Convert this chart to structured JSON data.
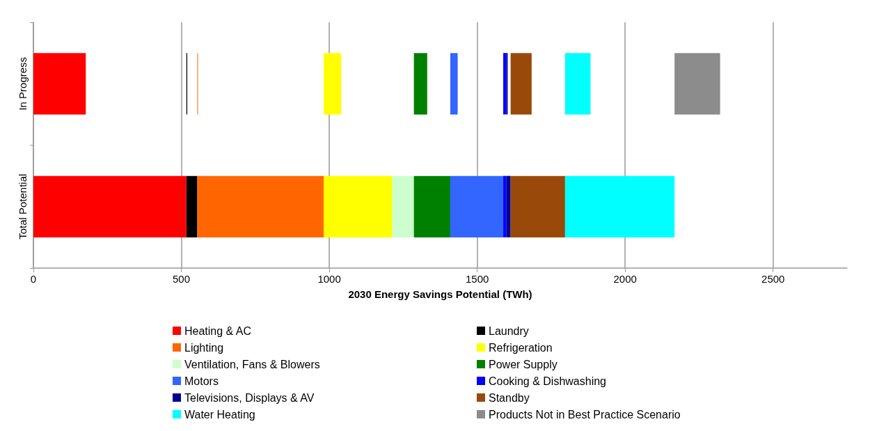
{
  "chart_data": {
    "type": "bar",
    "orientation": "horizontal",
    "xlabel": "2030 Energy Savings Potential (TWh)",
    "categories": [
      "In Progress",
      "Total Potential"
    ],
    "xlim": [
      0,
      2750
    ],
    "xticks": [
      0,
      500,
      1000,
      1500,
      2000,
      2500
    ],
    "grid": "x",
    "legend": "bottom",
    "series": [
      {
        "name": "Heating & AC",
        "color": "#ff0000",
        "values": [
          177,
          517
        ],
        "base": [
          0,
          0
        ]
      },
      {
        "name": "Laundry",
        "color": "#000000",
        "values": [
          3,
          37
        ],
        "base": [
          517,
          517
        ]
      },
      {
        "name": "Lighting",
        "color": "#ff6600",
        "values": [
          2,
          427
        ],
        "base": [
          554,
          554
        ]
      },
      {
        "name": "Refrigeration",
        "color": "#ffff00",
        "values": [
          59,
          232
        ],
        "base": [
          981,
          981
        ]
      },
      {
        "name": "Ventilation, Fans & Blowers",
        "color": "#ccffcc",
        "values": [
          null,
          73
        ],
        "base": [
          null,
          1213
        ]
      },
      {
        "name": "Power Supply",
        "color": "#008000",
        "values": [
          45,
          123
        ],
        "base": [
          1286,
          1286
        ]
      },
      {
        "name": "Motors",
        "color": "#3366ff",
        "values": [
          25,
          179
        ],
        "base": [
          1409,
          1409
        ]
      },
      {
        "name": "Cooking & Dishwashing",
        "color": "#0000ff",
        "values": [
          10,
          10
        ],
        "base": [
          1588,
          1588
        ]
      },
      {
        "name": "Televisions, Displays & AV",
        "color": "#000099",
        "values": [
          5,
          15
        ],
        "base": [
          1598,
          1598
        ]
      },
      {
        "name": "Standby",
        "color": "#994a0a",
        "values": [
          71,
          184
        ],
        "base": [
          1613,
          1613
        ]
      },
      {
        "name": "Water Heating",
        "color": "#00ffff",
        "values": [
          86,
          370
        ],
        "base": [
          1797,
          1797
        ]
      },
      {
        "name": "Products Not in Best Practice Scenario",
        "color": "#8c8c8c",
        "values": [
          154,
          null
        ],
        "base": [
          2167,
          null
        ]
      }
    ]
  }
}
